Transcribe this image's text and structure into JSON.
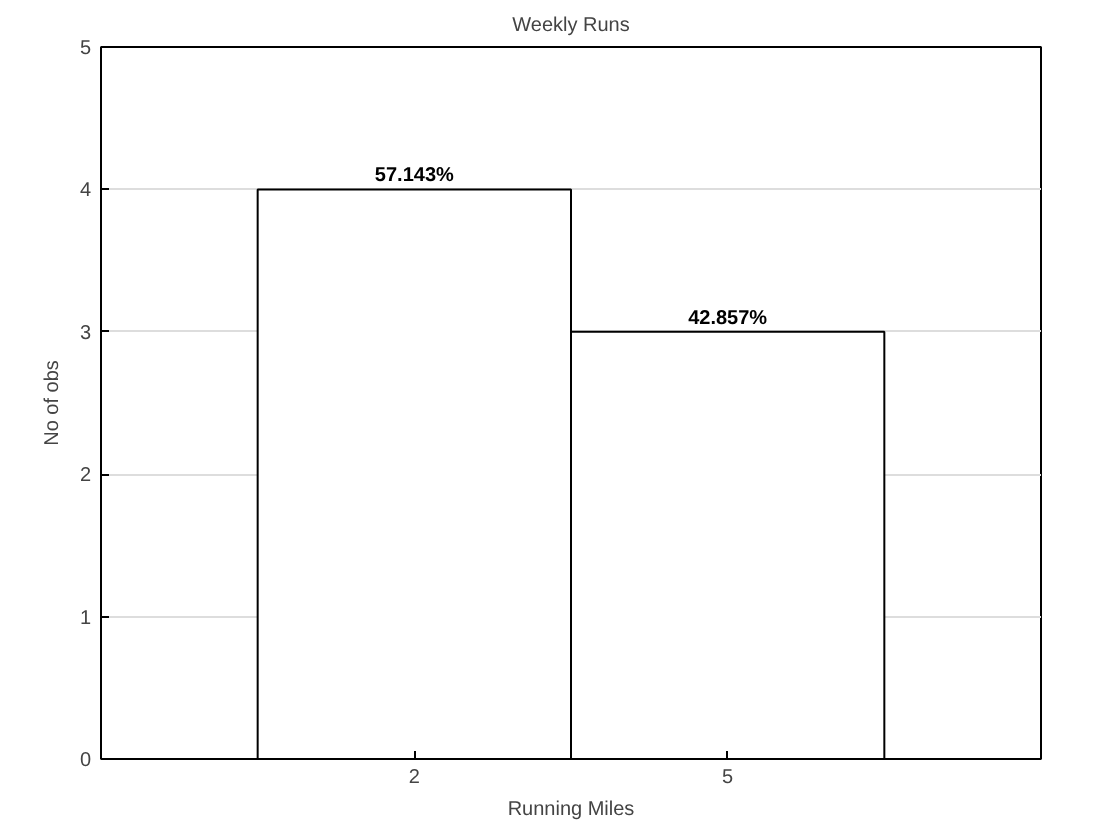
{
  "chart_data": {
    "type": "histogram",
    "title": "Weekly Runs",
    "xlabel": "Running Miles",
    "ylabel": "No of obs",
    "bins": [
      0.5,
      3.5,
      6.5
    ],
    "values": [
      4,
      3
    ],
    "color": "#ffffff",
    "annotations": [
      {
        "text": "57.143%",
        "x": 2,
        "y": 4
      },
      {
        "text": "42.857%",
        "x": 5,
        "y": 3
      }
    ],
    "xlim": [
      -1,
      8
    ],
    "xticks": [
      2,
      5
    ],
    "ylim": [
      0,
      5
    ],
    "yticks": [
      0,
      1,
      2,
      3,
      4,
      5
    ],
    "grid": "y"
  }
}
